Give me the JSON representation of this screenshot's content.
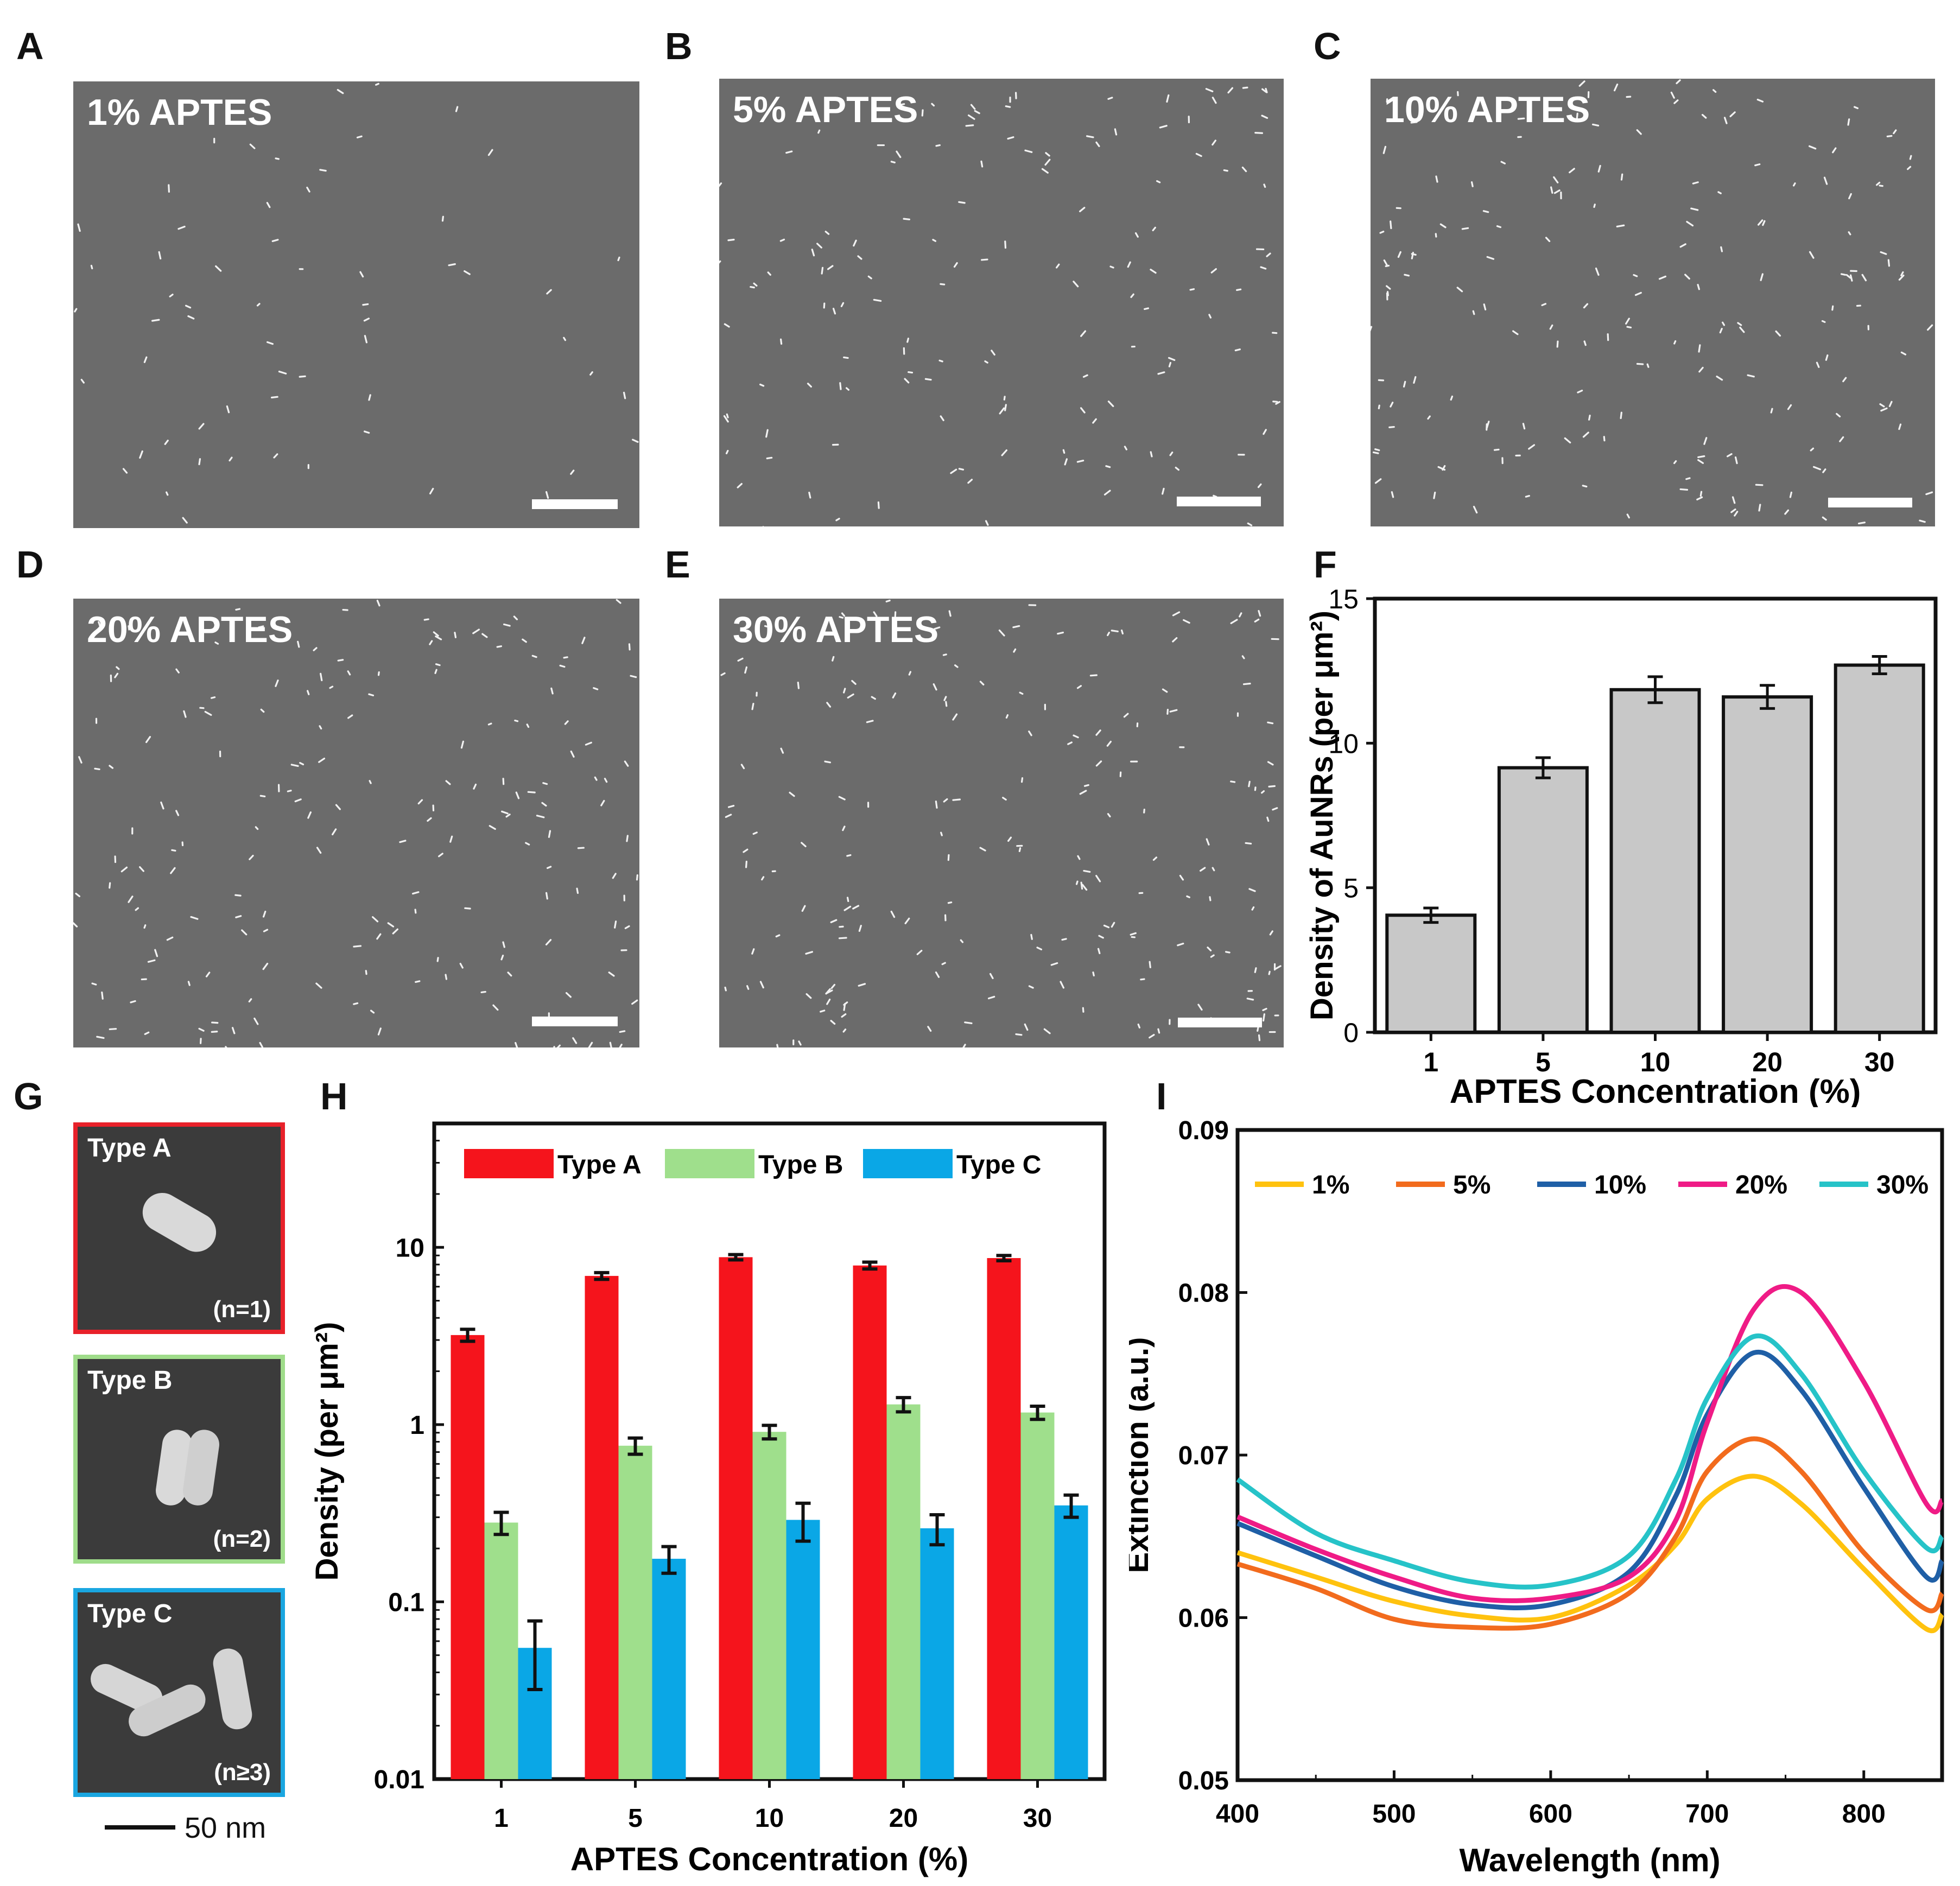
{
  "panels": {
    "A": {
      "label": "A",
      "title": "1% APTES",
      "density": 60
    },
    "B": {
      "label": "B",
      "title": "5% APTES",
      "density": 150
    },
    "C": {
      "label": "C",
      "title": "10% APTES",
      "density": 190
    },
    "D": {
      "label": "D",
      "title": "20% APTES",
      "density": 190
    },
    "E": {
      "label": "E",
      "title": "30% APTES",
      "density": 210
    },
    "F": {
      "label": "F"
    },
    "G": {
      "label": "G"
    },
    "H": {
      "label": "H"
    },
    "I": {
      "label": "I"
    }
  },
  "tem": {
    "types": [
      {
        "title": "Type A",
        "n": "(n=1)",
        "border": "#e8212a"
      },
      {
        "title": "Type B",
        "n": "(n=2)",
        "border": "#9fdc8a"
      },
      {
        "title": "Type C",
        "n": "(n≥3)",
        "border": "#1aa6e0"
      }
    ],
    "scale_label": "50 nm"
  },
  "colors": {
    "sem_bg": "#6b6b6b",
    "bar_gray": "#c8c8c8",
    "typeA": "#f5141c",
    "typeB": "#9fdf8c",
    "typeC": "#0aa7e6"
  },
  "chart_data": [
    {
      "id": "F",
      "type": "bar",
      "categories": [
        "1",
        "5",
        "10",
        "20",
        "30"
      ],
      "values": [
        4.05,
        9.15,
        11.85,
        11.6,
        12.7
      ],
      "errors": [
        0.25,
        0.35,
        0.45,
        0.4,
        0.3
      ],
      "xlabel": "APTES Concentration (%)",
      "ylabel": "Density of AuNRs (per μm²)",
      "ylim": [
        0,
        15
      ],
      "yticks": [
        "0",
        "5",
        "10",
        "15"
      ]
    },
    {
      "id": "H",
      "type": "bar",
      "scale": "log",
      "categories": [
        "1",
        "5",
        "10",
        "20",
        "30"
      ],
      "series": [
        {
          "name": "Type A",
          "color": "#f5141c",
          "values": [
            3.2,
            6.9,
            8.8,
            7.9,
            8.7
          ],
          "errors": [
            0.25,
            0.3,
            0.3,
            0.35,
            0.3
          ]
        },
        {
          "name": "Type B",
          "color": "#9fdf8c",
          "values": [
            0.28,
            0.76,
            0.91,
            1.3,
            1.17
          ],
          "errors": [
            0.04,
            0.08,
            0.08,
            0.12,
            0.1
          ]
        },
        {
          "name": "Type C",
          "color": "#0aa7e6",
          "values": [
            0.055,
            0.175,
            0.29,
            0.26,
            0.35
          ],
          "errors": [
            0.023,
            0.03,
            0.07,
            0.05,
            0.05
          ]
        }
      ],
      "xlabel": "APTES Concentration (%)",
      "ylabel": "Density (per μm²)",
      "ylim": [
        0.01,
        50
      ],
      "yticks": [
        {
          "v": 0.01,
          "t": "0.01"
        },
        {
          "v": 0.1,
          "t": "0.1"
        },
        {
          "v": 1,
          "t": "1"
        },
        {
          "v": 10,
          "t": "10"
        }
      ]
    },
    {
      "id": "I",
      "type": "line",
      "xlabel": "Wavelength (nm)",
      "ylabel": "Extinction (a.u.)",
      "xlim": [
        400,
        850
      ],
      "ylim": [
        0.05,
        0.09
      ],
      "xticks": [
        "400",
        "500",
        "600",
        "700",
        "800"
      ],
      "yticks": [
        "0.05",
        "0.06",
        "0.07",
        "0.08",
        "0.09"
      ],
      "x": [
        400,
        450,
        500,
        550,
        600,
        650,
        680,
        700,
        730,
        760,
        800,
        840,
        850
      ],
      "series": [
        {
          "name": "1%",
          "color": "#ffc20e",
          "values": [
            0.064,
            0.0625,
            0.061,
            0.0601,
            0.06,
            0.062,
            0.0645,
            0.0673,
            0.0687,
            0.067,
            0.063,
            0.0593,
            0.0602
          ]
        },
        {
          "name": "5%",
          "color": "#f26b1d",
          "values": [
            0.0633,
            0.0618,
            0.0599,
            0.0594,
            0.0596,
            0.0615,
            0.065,
            0.069,
            0.071,
            0.069,
            0.064,
            0.0605,
            0.0615
          ]
        },
        {
          "name": "10%",
          "color": "#1f5fa6",
          "values": [
            0.0658,
            0.0638,
            0.0619,
            0.0608,
            0.0608,
            0.0628,
            0.0675,
            0.0725,
            0.0763,
            0.074,
            0.068,
            0.0625,
            0.0635
          ]
        },
        {
          "name": "20%",
          "color": "#ef1b86",
          "values": [
            0.0662,
            0.0642,
            0.0625,
            0.0612,
            0.0612,
            0.0625,
            0.066,
            0.072,
            0.079,
            0.08,
            0.0745,
            0.067,
            0.0672
          ]
        },
        {
          "name": "30%",
          "color": "#26c3c8",
          "values": [
            0.0685,
            0.0652,
            0.0635,
            0.0622,
            0.062,
            0.0638,
            0.0685,
            0.0735,
            0.0773,
            0.075,
            0.069,
            0.0643,
            0.065
          ]
        }
      ]
    }
  ]
}
